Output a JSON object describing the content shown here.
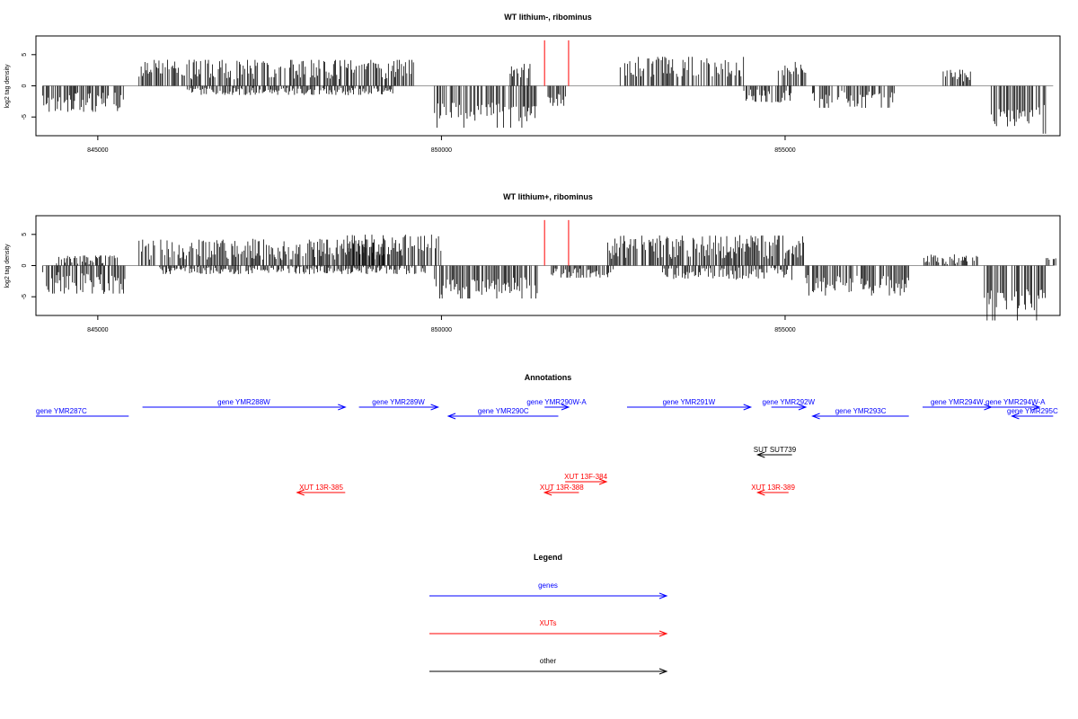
{
  "chart_data": [
    {
      "type": "bar",
      "title": "WT lithium-, ribominus",
      "xlabel": "",
      "ylabel": "log2 tag density",
      "xlim": [
        844100,
        859000
      ],
      "ylim": [
        -8,
        8
      ],
      "x_ticks": [
        "845000",
        "850000",
        "855000"
      ],
      "y_ticks": [
        "5",
        "0",
        "-5"
      ],
      "segments": [
        {
          "start": 844200,
          "end": 845400,
          "level": -2.6,
          "amp": 1.6
        },
        {
          "start": 845600,
          "end": 849600,
          "level": 2.6,
          "amp": 1.6
        },
        {
          "start": 846300,
          "end": 849300,
          "level": -0.9,
          "amp": 0.6
        },
        {
          "start": 849900,
          "end": 851400,
          "level": -4.2,
          "amp": 1.5
        },
        {
          "start": 851000,
          "end": 851300,
          "level": 2.2,
          "amp": 1.0
        },
        {
          "start": 851550,
          "end": 851850,
          "level": -2.0,
          "amp": 1.0
        },
        {
          "start": 852600,
          "end": 854400,
          "level": 2.9,
          "amp": 1.6
        },
        {
          "start": 854400,
          "end": 855100,
          "level": -1.6,
          "amp": 1.2
        },
        {
          "start": 854900,
          "end": 855300,
          "level": 3.0,
          "amp": 1.5
        },
        {
          "start": 855400,
          "end": 856600,
          "level": -2.2,
          "amp": 1.4
        },
        {
          "start": 857300,
          "end": 857700,
          "level": 1.6,
          "amp": 1.0
        },
        {
          "start": 858000,
          "end": 858800,
          "level": -4.8,
          "amp": 1.8
        }
      ],
      "red_lines_x": [
        851500,
        851850
      ],
      "red_line_top": 7.3
    },
    {
      "type": "bar",
      "title": "WT lithium+, ribominus",
      "xlabel": "",
      "ylabel": "log2 tag density",
      "xlim": [
        844100,
        859000
      ],
      "ylim": [
        -8,
        8
      ],
      "x_ticks": [
        "845000",
        "850000",
        "855000"
      ],
      "y_ticks": [
        "5",
        "0",
        "-5"
      ],
      "segments": [
        {
          "start": 844200,
          "end": 845400,
          "level": -2.8,
          "amp": 1.8
        },
        {
          "start": 844400,
          "end": 845300,
          "level": 1.0,
          "amp": 0.8
        },
        {
          "start": 845600,
          "end": 849200,
          "level": 2.6,
          "amp": 1.7
        },
        {
          "start": 848600,
          "end": 850000,
          "level": 3.1,
          "amp": 1.8
        },
        {
          "start": 845900,
          "end": 849800,
          "level": -0.8,
          "amp": 0.6
        },
        {
          "start": 849900,
          "end": 851400,
          "level": -3.3,
          "amp": 1.4
        },
        {
          "start": 851600,
          "end": 852500,
          "level": -1.2,
          "amp": 0.8
        },
        {
          "start": 852400,
          "end": 855300,
          "level": 3.0,
          "amp": 1.9
        },
        {
          "start": 853200,
          "end": 855100,
          "level": -1.3,
          "amp": 1.0
        },
        {
          "start": 855300,
          "end": 856800,
          "level": -3.0,
          "amp": 1.5
        },
        {
          "start": 857000,
          "end": 857800,
          "level": 1.0,
          "amp": 0.8
        },
        {
          "start": 857900,
          "end": 858800,
          "level": -5.5,
          "amp": 1.7
        },
        {
          "start": 858800,
          "end": 858950,
          "level": 1.2,
          "amp": 0.8
        }
      ],
      "red_lines_x": [
        851500,
        851850
      ],
      "red_line_top": 7.3
    }
  ],
  "annotations": {
    "title": "Annotations",
    "features": [
      {
        "label": "gene YMR287C",
        "start": 844100,
        "end": 845450,
        "strand": "-",
        "type": "gene",
        "row": 1,
        "head": false
      },
      {
        "label": "gene YMR288W",
        "start": 845650,
        "end": 848600,
        "strand": "+",
        "type": "gene",
        "row": 0
      },
      {
        "label": "gene YMR289W",
        "start": 848800,
        "end": 849950,
        "strand": "+",
        "type": "gene",
        "row": 0
      },
      {
        "label": "gene YMR290C",
        "start": 850100,
        "end": 851700,
        "strand": "-",
        "type": "gene",
        "row": 1
      },
      {
        "label": "gene YMR290W-A",
        "start": 851500,
        "end": 851850,
        "strand": "+",
        "type": "gene",
        "row": 0
      },
      {
        "label": "gene YMR291W",
        "start": 852700,
        "end": 854500,
        "strand": "+",
        "type": "gene",
        "row": 0
      },
      {
        "label": "gene YMR292W",
        "start": 854800,
        "end": 855300,
        "strand": "+",
        "type": "gene",
        "row": 0
      },
      {
        "label": "gene YMR293C",
        "start": 855400,
        "end": 856800,
        "strand": "-",
        "type": "gene",
        "row": 1
      },
      {
        "label": "gene YMR294W",
        "start": 857000,
        "end": 858000,
        "strand": "+",
        "type": "gene",
        "row": 0
      },
      {
        "label": "gene YMR294W-A",
        "start": 858000,
        "end": 858700,
        "strand": "+",
        "type": "gene",
        "row": 0
      },
      {
        "label": "gene YMR295C",
        "start": 858300,
        "end": 858900,
        "strand": "-",
        "type": "gene",
        "row": 1
      },
      {
        "label": "SUT SUT739",
        "start": 854600,
        "end": 855100,
        "strand": "-",
        "type": "other",
        "row": 2
      },
      {
        "label": "XUT 13F-384",
        "start": 851800,
        "end": 852400,
        "strand": "+",
        "type": "xut",
        "row": 3
      },
      {
        "label": "XUT 13R-385",
        "start": 847900,
        "end": 848600,
        "strand": "-",
        "type": "xut",
        "row": 4
      },
      {
        "label": "XUT 13R-388",
        "start": 851500,
        "end": 852000,
        "strand": "-",
        "type": "xut",
        "row": 4
      },
      {
        "label": "XUT 13R-389",
        "start": 854600,
        "end": 855050,
        "strand": "-",
        "type": "xut",
        "row": 4
      }
    ]
  },
  "legend": {
    "title": "Legend",
    "items": [
      {
        "label": "genes",
        "color": "#0000ff"
      },
      {
        "label": "XUTs",
        "color": "#ff0000"
      },
      {
        "label": "other",
        "color": "#000000"
      }
    ]
  },
  "colors": {
    "gene": "#0000ff",
    "xut": "#ff0000",
    "other": "#000000",
    "red_marker": "#ff0000",
    "zero_line": "#999999"
  }
}
